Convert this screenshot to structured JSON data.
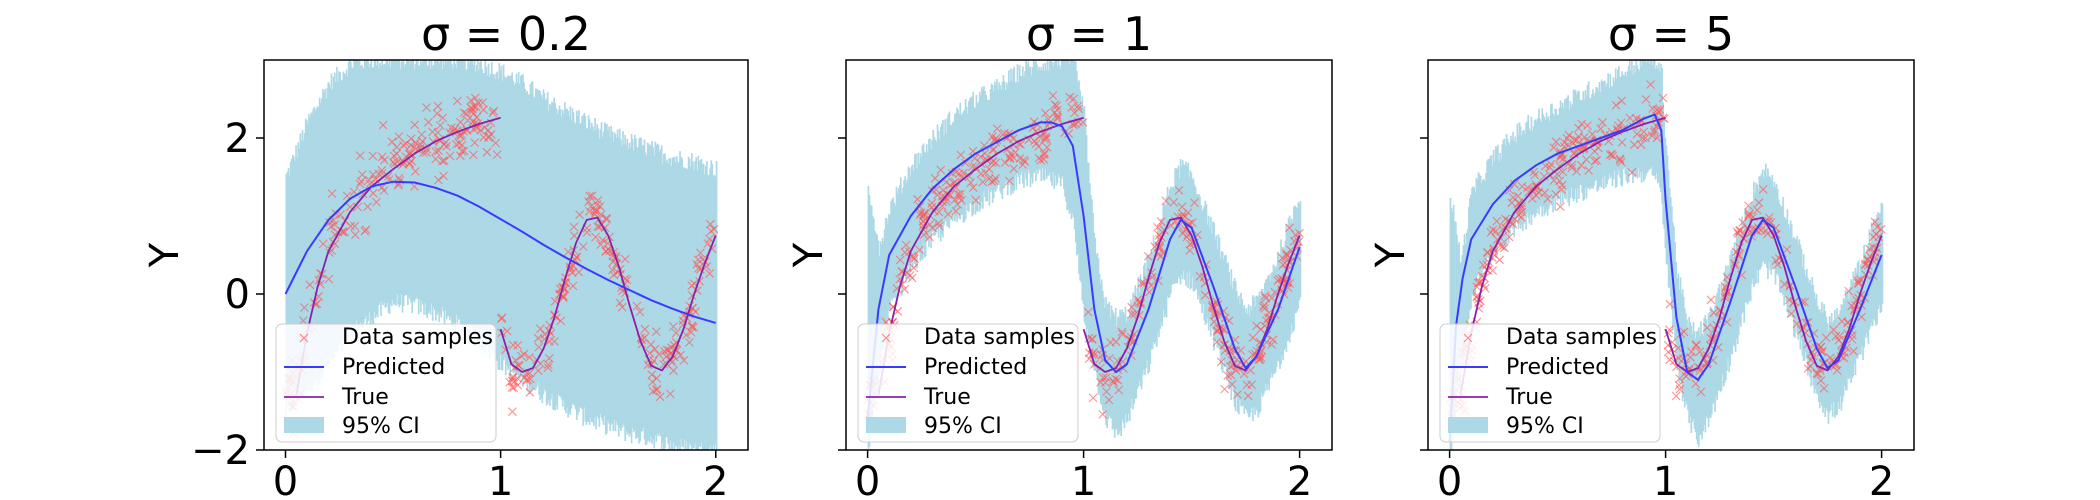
{
  "colors": {
    "ci_fill": "#add8e6",
    "predicted": "#3a3aff",
    "true": "#8a22a8",
    "samples": "#ff5555",
    "axes": "#000000"
  },
  "legend": {
    "placement": "lower-left",
    "entries": [
      "Data samples",
      "Predicted",
      "True",
      "95% CI"
    ]
  },
  "chart_data": [
    {
      "type": "line",
      "title": "σ = 0.2",
      "xlabel": "",
      "ylabel": "Y",
      "xlim": [
        -0.1,
        2.15
      ],
      "ylim": [
        -2,
        3
      ],
      "x_ticks": [
        "0",
        "1",
        "2"
      ],
      "y_ticks": [
        "−2",
        "0",
        "2"
      ],
      "x_tick_values": [
        0,
        1,
        2
      ],
      "y_tick_values": [
        -2,
        0,
        2
      ],
      "show_y_tick_labels": true,
      "predicted": {
        "x": [
          0,
          0.1,
          0.2,
          0.3,
          0.4,
          0.5,
          0.6,
          0.7,
          0.8,
          0.9,
          1.0,
          1.1,
          1.2,
          1.3,
          1.4,
          1.5,
          1.6,
          1.7,
          1.8,
          1.9,
          2.0
        ],
        "y": [
          0,
          0.55,
          0.95,
          1.22,
          1.38,
          1.44,
          1.43,
          1.36,
          1.26,
          1.12,
          0.96,
          0.8,
          0.63,
          0.47,
          0.32,
          0.18,
          0.05,
          -0.08,
          -0.19,
          -0.29,
          -0.37
        ]
      },
      "ci_band": {
        "x": [
          0,
          0.1,
          0.2,
          0.3,
          0.4,
          0.5,
          0.6,
          0.7,
          0.8,
          0.9,
          1.0,
          1.1,
          1.2,
          1.3,
          1.4,
          1.5,
          1.6,
          1.7,
          1.8,
          1.9,
          2.0
        ],
        "upper": [
          1.5,
          2.2,
          2.7,
          2.95,
          3,
          3,
          3,
          3,
          3,
          2.95,
          2.85,
          2.7,
          2.5,
          2.35,
          2.2,
          2.05,
          1.95,
          1.85,
          1.75,
          1.7,
          1.6
        ],
        "lower": [
          -1.5,
          -1.2,
          -0.9,
          -0.5,
          -0.3,
          -0.1,
          -0.15,
          -0.25,
          -0.4,
          -0.6,
          -0.9,
          -1.1,
          -1.3,
          -1.45,
          -1.6,
          -1.7,
          -1.8,
          -1.85,
          -1.95,
          -2,
          -2
        ]
      }
    },
    {
      "type": "line",
      "title": "σ = 1",
      "xlabel": "",
      "ylabel": "Y",
      "xlim": [
        -0.1,
        2.15
      ],
      "ylim": [
        -2,
        3
      ],
      "x_ticks": [
        "0",
        "1",
        "2"
      ],
      "y_ticks": [
        "",
        "",
        ""
      ],
      "x_tick_values": [
        0,
        1,
        2
      ],
      "y_tick_values": [
        -2,
        0,
        2
      ],
      "show_y_tick_labels": false,
      "predicted": {
        "x": [
          0,
          0.05,
          0.1,
          0.2,
          0.3,
          0.4,
          0.5,
          0.6,
          0.7,
          0.8,
          0.85,
          0.9,
          0.95,
          1.0,
          1.05,
          1.1,
          1.15,
          1.2,
          1.3,
          1.4,
          1.45,
          1.5,
          1.6,
          1.7,
          1.75,
          1.8,
          1.9,
          2.0
        ],
        "y": [
          -1.6,
          -0.2,
          0.5,
          1.0,
          1.35,
          1.6,
          1.8,
          1.95,
          2.1,
          2.2,
          2.2,
          2.15,
          1.9,
          1.0,
          -0.2,
          -0.85,
          -1.0,
          -0.9,
          -0.2,
          0.7,
          0.95,
          0.85,
          0.1,
          -0.7,
          -0.95,
          -0.8,
          -0.2,
          0.6
        ]
      },
      "ci_band": {
        "x": [
          0,
          0.05,
          0.1,
          0.2,
          0.3,
          0.4,
          0.5,
          0.6,
          0.7,
          0.8,
          0.9,
          0.95,
          1.0,
          1.05,
          1.1,
          1.15,
          1.2,
          1.3,
          1.4,
          1.45,
          1.5,
          1.6,
          1.7,
          1.75,
          1.8,
          1.9,
          2.0
        ],
        "upper": [
          1.4,
          0.6,
          1.1,
          1.65,
          2.0,
          2.3,
          2.5,
          2.65,
          2.85,
          2.95,
          3.0,
          3.0,
          2.3,
          0.6,
          -0.15,
          -0.3,
          -0.25,
          0.45,
          1.4,
          1.65,
          1.5,
          0.8,
          0.05,
          -0.2,
          -0.1,
          0.5,
          1.3
        ],
        "lower": [
          -2,
          -1.0,
          -0.2,
          0.35,
          0.7,
          0.95,
          1.15,
          1.3,
          1.45,
          1.5,
          1.4,
          0.9,
          -0.3,
          -1.0,
          -1.6,
          -1.8,
          -1.6,
          -0.9,
          0.0,
          0.25,
          0.15,
          -0.6,
          -1.4,
          -1.6,
          -1.5,
          -0.9,
          -0.1
        ]
      }
    },
    {
      "type": "line",
      "title": "σ = 5",
      "xlabel": "",
      "ylabel": "Y",
      "xlim": [
        -0.1,
        2.15
      ],
      "ylim": [
        -2,
        3
      ],
      "x_ticks": [
        "0",
        "1",
        "2"
      ],
      "y_ticks": [
        "",
        "",
        ""
      ],
      "x_tick_values": [
        0,
        1,
        2
      ],
      "y_tick_values": [
        -2,
        0,
        2
      ],
      "show_y_tick_labels": false,
      "predicted": {
        "x": [
          0,
          0.03,
          0.06,
          0.1,
          0.2,
          0.3,
          0.4,
          0.5,
          0.6,
          0.7,
          0.8,
          0.9,
          0.95,
          0.98,
          1.0,
          1.05,
          1.1,
          1.15,
          1.2,
          1.3,
          1.4,
          1.45,
          1.5,
          1.6,
          1.7,
          1.75,
          1.8,
          1.9,
          2.0
        ],
        "y": [
          -1.9,
          -0.4,
          0.2,
          0.7,
          1.15,
          1.45,
          1.65,
          1.8,
          1.9,
          2.0,
          2.1,
          2.25,
          2.3,
          2.1,
          1.2,
          -0.3,
          -1.0,
          -1.1,
          -0.9,
          -0.1,
          0.75,
          0.95,
          0.85,
          0.1,
          -0.7,
          -0.95,
          -0.85,
          -0.2,
          0.5
        ]
      },
      "ci_band": {
        "x": [
          0,
          0.05,
          0.1,
          0.2,
          0.3,
          0.4,
          0.5,
          0.6,
          0.7,
          0.8,
          0.9,
          0.95,
          0.98,
          1.0,
          1.05,
          1.1,
          1.15,
          1.2,
          1.3,
          1.4,
          1.45,
          1.5,
          1.6,
          1.7,
          1.75,
          1.8,
          1.9,
          2.0
        ],
        "upper": [
          1.3,
          0.4,
          1.3,
          1.75,
          2.05,
          2.25,
          2.4,
          2.55,
          2.7,
          2.85,
          3.0,
          3.0,
          2.8,
          1.9,
          0.3,
          -0.4,
          -0.5,
          -0.3,
          0.45,
          1.3,
          1.6,
          1.45,
          0.7,
          -0.1,
          -0.35,
          -0.25,
          0.4,
          1.2
        ],
        "lower": [
          -2,
          -1.0,
          0.0,
          0.55,
          0.85,
          1.05,
          1.2,
          1.3,
          1.4,
          1.5,
          1.55,
          1.5,
          1.2,
          0.4,
          -0.9,
          -1.6,
          -1.85,
          -1.6,
          -0.8,
          0.1,
          0.35,
          0.25,
          -0.5,
          -1.3,
          -1.55,
          -1.45,
          -0.8,
          -0.1
        ]
      }
    }
  ],
  "true_function": {
    "segment_1": {
      "x": [
        0.05,
        0.1,
        0.15,
        0.2,
        0.3,
        0.4,
        0.5,
        0.6,
        0.7,
        0.8,
        0.9,
        1.0
      ],
      "y": [
        -1.3,
        -0.5,
        0.1,
        0.55,
        1.05,
        1.38,
        1.6,
        1.8,
        1.96,
        2.08,
        2.18,
        2.26
      ]
    },
    "segment_2": {
      "x": [
        1.0,
        1.05,
        1.1,
        1.15,
        1.2,
        1.25,
        1.3,
        1.35,
        1.4,
        1.45,
        1.5,
        1.55,
        1.6,
        1.65,
        1.7,
        1.75,
        1.8,
        1.85,
        1.9,
        1.95,
        2.0
      ],
      "y": [
        -0.45,
        -0.9,
        -1.0,
        -0.95,
        -0.7,
        -0.3,
        0.2,
        0.65,
        0.95,
        0.98,
        0.75,
        0.35,
        -0.15,
        -0.6,
        -0.92,
        -0.98,
        -0.8,
        -0.45,
        0.0,
        0.4,
        0.75
      ]
    }
  }
}
